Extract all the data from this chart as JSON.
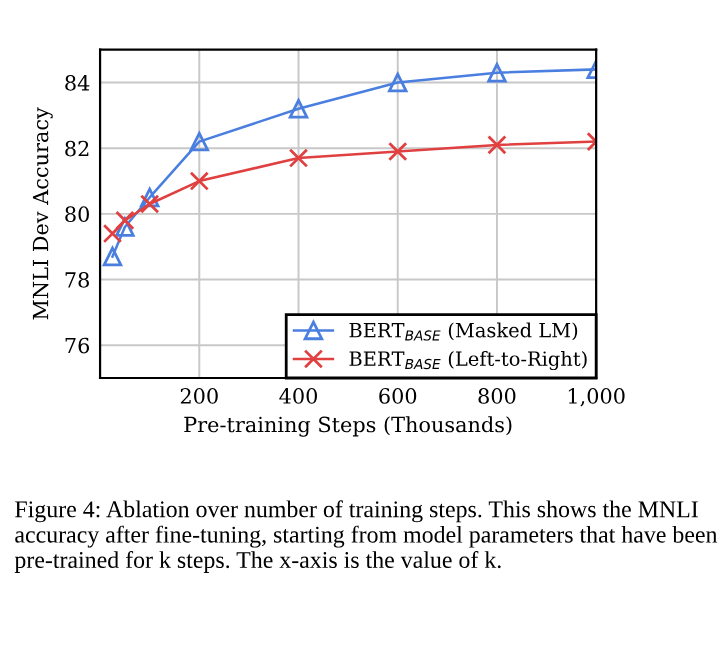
{
  "chart_data": {
    "type": "line",
    "xlabel": "Pre-training Steps (Thousands)",
    "ylabel": "MNLI Dev Accuracy",
    "x": [
      25,
      50,
      100,
      200,
      400,
      600,
      800,
      1000
    ],
    "series": [
      {
        "name": "BERT$_{BASE}$ (Masked LM)",
        "color": "#4a7fe0",
        "marker": "triangle",
        "values": [
          78.7,
          79.6,
          80.5,
          82.2,
          83.2,
          84.0,
          84.3,
          84.4
        ]
      },
      {
        "name": "BERT$_{BASE}$ (Left-to-Right)",
        "color": "#e04040",
        "marker": "cross",
        "values": [
          79.4,
          79.8,
          80.3,
          81.0,
          81.7,
          81.9,
          82.1,
          82.2
        ]
      }
    ],
    "xlim": [
      0,
      1000
    ],
    "xticks": [
      200,
      400,
      600,
      800,
      {
        "value": 1000,
        "label": "1,000"
      }
    ],
    "ylim": [
      75,
      85
    ],
    "yticks": [
      76,
      78,
      80,
      82,
      84
    ],
    "grid": true,
    "legend": "bottom right",
    "line_style": "solid",
    "annotations": [
      "Figure 4: Ablation over number of training steps. This shows the MNLI accuracy after fine-tuning, starting from model parameters that have been pre-trained for k steps. The x-axis is the value of k."
    ]
  }
}
